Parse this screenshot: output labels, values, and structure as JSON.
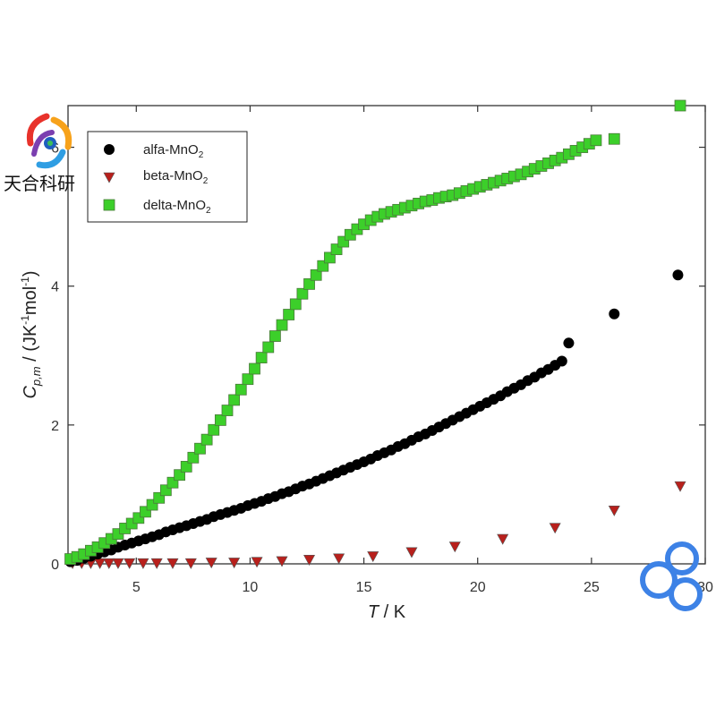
{
  "chart_data": {
    "type": "scatter",
    "xlabel": {
      "symbol": "T",
      "unit": " / K"
    },
    "ylabel": {
      "symbol": "C",
      "subscript": "p,m",
      "unit_prefix": " / (JK",
      "unit_sup1": "-1",
      "unit_mid": "mol",
      "unit_sup2": "-1",
      "unit_suffix": ")"
    },
    "xlim": [
      2,
      30
    ],
    "ylim": [
      0,
      6.6
    ],
    "x_ticks": [
      5,
      10,
      15,
      20,
      25,
      30
    ],
    "y_ticks": [
      0,
      2,
      4,
      6
    ],
    "legend_position": "top-left",
    "series": [
      {
        "name": "alfa-MnO",
        "name_sub": "2",
        "marker": "circle",
        "color": "#000000",
        "x": [
          2.1,
          2.4,
          2.7,
          3.0,
          3.3,
          3.6,
          3.9,
          4.2,
          4.5,
          4.8,
          5.1,
          5.4,
          5.7,
          6.0,
          6.3,
          6.6,
          6.9,
          7.2,
          7.5,
          7.8,
          8.1,
          8.4,
          8.7,
          9.0,
          9.3,
          9.6,
          9.9,
          10.2,
          10.5,
          10.8,
          11.1,
          11.4,
          11.7,
          12.0,
          12.3,
          12.6,
          12.9,
          13.2,
          13.5,
          13.8,
          14.1,
          14.4,
          14.7,
          15.0,
          15.3,
          15.6,
          15.9,
          16.2,
          16.5,
          16.8,
          17.1,
          17.4,
          17.7,
          18.0,
          18.3,
          18.6,
          18.9,
          19.2,
          19.5,
          19.8,
          20.1,
          20.4,
          20.7,
          21.0,
          21.3,
          21.6,
          21.9,
          22.2,
          22.5,
          22.8,
          23.1,
          23.4,
          23.7,
          24.0,
          26.0,
          28.8
        ],
        "y": [
          0.03,
          0.05,
          0.08,
          0.11,
          0.14,
          0.17,
          0.2,
          0.24,
          0.27,
          0.3,
          0.33,
          0.36,
          0.39,
          0.42,
          0.46,
          0.49,
          0.52,
          0.55,
          0.58,
          0.61,
          0.64,
          0.68,
          0.71,
          0.74,
          0.77,
          0.8,
          0.84,
          0.87,
          0.9,
          0.94,
          0.97,
          1.01,
          1.04,
          1.08,
          1.12,
          1.15,
          1.19,
          1.23,
          1.27,
          1.31,
          1.35,
          1.39,
          1.43,
          1.47,
          1.51,
          1.56,
          1.6,
          1.64,
          1.69,
          1.73,
          1.78,
          1.83,
          1.87,
          1.92,
          1.97,
          2.02,
          2.07,
          2.12,
          2.17,
          2.22,
          2.27,
          2.32,
          2.37,
          2.42,
          2.48,
          2.53,
          2.58,
          2.64,
          2.69,
          2.75,
          2.8,
          2.86,
          2.92,
          3.18,
          3.6,
          4.16
        ]
      },
      {
        "name": "beta-MnO",
        "name_sub": "2",
        "marker": "triangle-down",
        "color": "#b8201c",
        "x": [
          2.2,
          2.6,
          3.0,
          3.4,
          3.8,
          4.2,
          4.7,
          5.3,
          5.9,
          6.6,
          7.4,
          8.3,
          9.3,
          10.3,
          11.4,
          12.6,
          13.9,
          15.4,
          17.1,
          19.0,
          21.1,
          23.4,
          26.0,
          28.9
        ],
        "y": [
          0.01,
          0.01,
          0.01,
          0.01,
          0.01,
          0.01,
          0.01,
          0.01,
          0.01,
          0.01,
          0.01,
          0.02,
          0.02,
          0.03,
          0.04,
          0.06,
          0.08,
          0.11,
          0.17,
          0.25,
          0.36,
          0.52,
          0.77,
          1.12
        ]
      },
      {
        "name": "delta-MnO",
        "name_sub": "2",
        "marker": "square",
        "color": "#3ccf2a",
        "x": [
          2.1,
          2.4,
          2.7,
          3.0,
          3.3,
          3.6,
          3.9,
          4.2,
          4.5,
          4.8,
          5.1,
          5.4,
          5.7,
          6.0,
          6.3,
          6.6,
          6.9,
          7.2,
          7.5,
          7.8,
          8.1,
          8.4,
          8.7,
          9.0,
          9.3,
          9.6,
          9.9,
          10.2,
          10.5,
          10.8,
          11.1,
          11.4,
          11.7,
          12.0,
          12.3,
          12.6,
          12.9,
          13.2,
          13.5,
          13.8,
          14.1,
          14.4,
          14.7,
          15.0,
          15.3,
          15.6,
          15.9,
          16.2,
          16.5,
          16.8,
          17.1,
          17.4,
          17.7,
          18.0,
          18.3,
          18.6,
          18.9,
          19.2,
          19.5,
          19.8,
          20.1,
          20.4,
          20.7,
          21.0,
          21.3,
          21.6,
          21.9,
          22.2,
          22.5,
          22.8,
          23.1,
          23.4,
          23.7,
          24.0,
          24.3,
          24.6,
          24.9,
          25.2,
          26.0,
          28.9
        ],
        "y": [
          0.07,
          0.1,
          0.14,
          0.19,
          0.24,
          0.3,
          0.36,
          0.43,
          0.51,
          0.58,
          0.66,
          0.75,
          0.85,
          0.95,
          1.06,
          1.17,
          1.28,
          1.4,
          1.53,
          1.66,
          1.79,
          1.93,
          2.07,
          2.21,
          2.36,
          2.51,
          2.66,
          2.81,
          2.97,
          3.12,
          3.28,
          3.44,
          3.59,
          3.74,
          3.89,
          4.03,
          4.16,
          4.29,
          4.41,
          4.53,
          4.64,
          4.74,
          4.82,
          4.89,
          4.95,
          5.0,
          5.04,
          5.07,
          5.1,
          5.13,
          5.16,
          5.19,
          5.22,
          5.24,
          5.27,
          5.29,
          5.31,
          5.34,
          5.37,
          5.4,
          5.43,
          5.46,
          5.49,
          5.52,
          5.55,
          5.58,
          5.61,
          5.65,
          5.69,
          5.73,
          5.77,
          5.81,
          5.85,
          5.9,
          5.95,
          6.0,
          6.05,
          6.1,
          6.12,
          6.6
        ]
      }
    ]
  },
  "watermark": {
    "logo_text": "天合科研",
    "logo_colors": [
      "#e8322b",
      "#f7a21b",
      "#2f9ee3",
      "#7b3fb0",
      "#1f5fbf",
      "#3cbf5a"
    ],
    "corner_logo_color": "#3d82e6"
  }
}
